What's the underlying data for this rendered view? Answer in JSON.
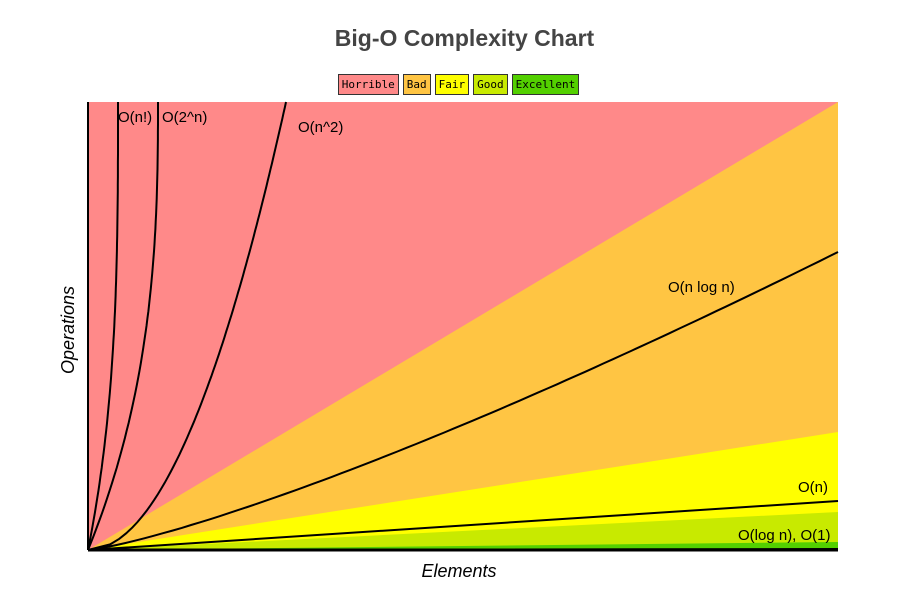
{
  "chart_data": {
    "type": "area",
    "title": "Big-O Complexity Chart",
    "xlabel": "Elements",
    "ylabel": "Operations",
    "grid": false,
    "legend_position": "top-center",
    "legend": [
      {
        "label": "Horrible",
        "color": "#ff8989"
      },
      {
        "label": "Bad",
        "color": "#ffc543"
      },
      {
        "label": "Fair",
        "color": "#ffff00"
      },
      {
        "label": "Good",
        "color": "#c8ea00"
      },
      {
        "label": "Excellent",
        "color": "#53d000"
      }
    ],
    "regions": [
      {
        "name": "Horrible",
        "color": "#ff8989"
      },
      {
        "name": "Bad",
        "color": "#ffc543"
      },
      {
        "name": "Fair",
        "color": "#ffff00"
      },
      {
        "name": "Good",
        "color": "#c8ea00"
      },
      {
        "name": "Excellent",
        "color": "#53d000"
      }
    ],
    "series": [
      {
        "name": "O(n!)"
      },
      {
        "name": "O(2^n)"
      },
      {
        "name": "O(n^2)"
      },
      {
        "name": "O(n log n)"
      },
      {
        "name": "O(n)"
      },
      {
        "name": "O(log n), O(1)"
      }
    ]
  }
}
